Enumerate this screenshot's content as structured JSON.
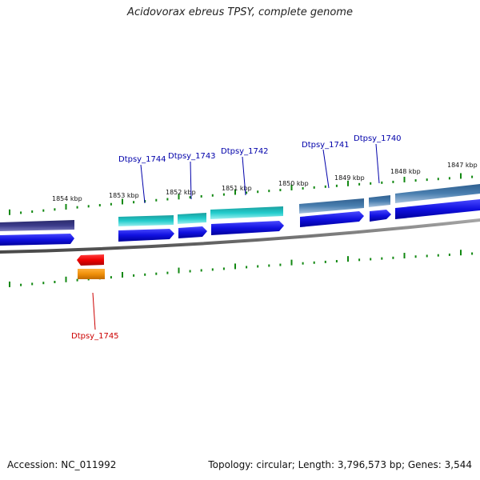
{
  "title": "Acidovorax ebreus TPSY, complete genome",
  "footer": {
    "accession": "Accession: NC_011992",
    "summary": "Topology: circular; Length: 3,796,573 bp; Genes: 3,544"
  },
  "scale": {
    "unit": "kbp",
    "ticks": [
      "1854 kbp",
      "1853 kbp",
      "1852 kbp",
      "1851 kbp",
      "1850 kbp",
      "1849 kbp",
      "1848 kbp",
      "1847 kbp"
    ]
  },
  "genes": [
    {
      "label": "Dtpsy_1745",
      "color": "#cc0000"
    },
    {
      "label": "Dtpsy_1744",
      "color": "#0000aa"
    },
    {
      "label": "Dtpsy_1743",
      "color": "#0000aa"
    },
    {
      "label": "Dtpsy_1742",
      "color": "#0000aa"
    },
    {
      "label": "Dtpsy_1741",
      "color": "#0000aa"
    },
    {
      "label": "Dtpsy_1740",
      "color": "#0000aa"
    }
  ],
  "colors": {
    "backbone": "#888888",
    "cds_arrow": "#1010e0",
    "teal_feature": "#20c8c8",
    "steel_feature": "#4a7fb0",
    "navy_feature": "#3b3b8a",
    "reverse_cds": "#ee0000",
    "orange_feature": "#f0900a",
    "tick": "#118811"
  }
}
